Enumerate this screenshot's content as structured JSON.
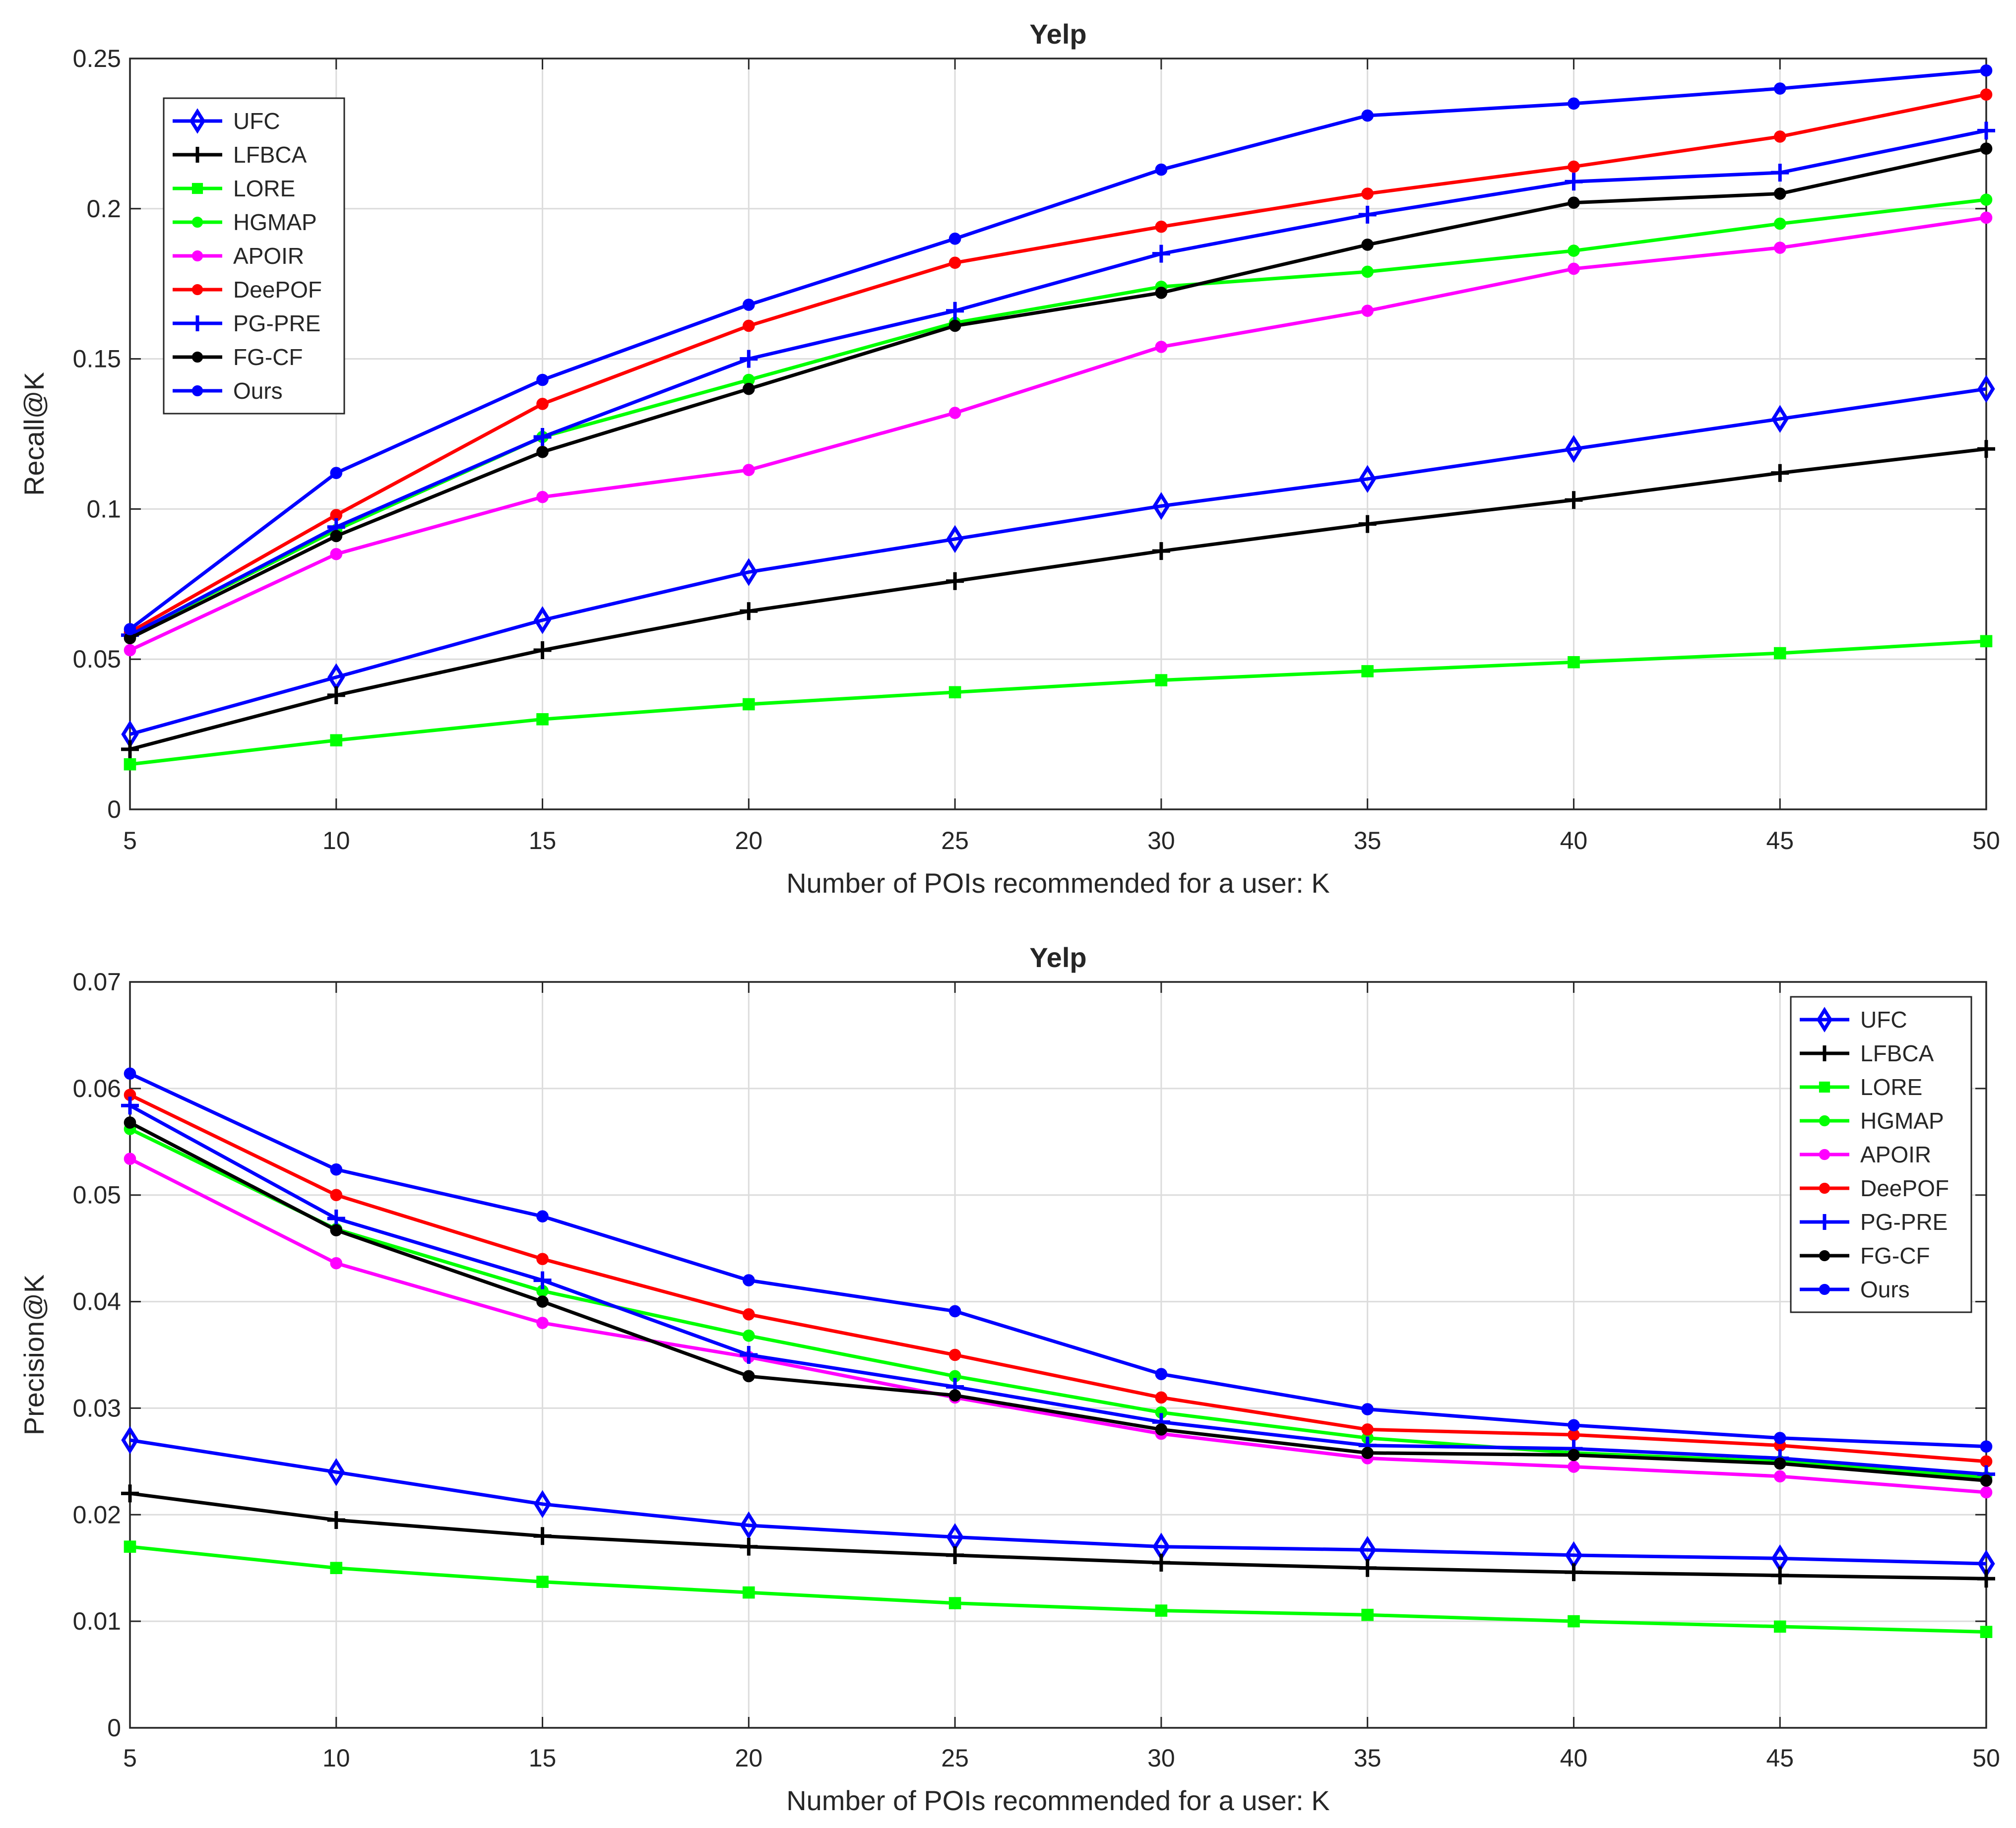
{
  "chart_data": [
    {
      "type": "line",
      "title": "Yelp",
      "xlabel": "Number of POIs recommended for a user: K",
      "ylabel": "Recall@K",
      "x": [
        5,
        10,
        15,
        20,
        25,
        30,
        35,
        40,
        45,
        50
      ],
      "xlim": [
        5,
        50
      ],
      "ylim": [
        0,
        0.25
      ],
      "xticks": [
        "5",
        "10",
        "15",
        "20",
        "25",
        "30",
        "35",
        "40",
        "45",
        "50"
      ],
      "yticks": [
        0,
        0.05,
        0.1,
        0.15,
        0.2,
        0.25
      ],
      "ytick_labels": [
        "0",
        "0.05",
        "0.1",
        "0.15",
        "0.2",
        "0.25"
      ],
      "grid": true,
      "legend_position": "top-left",
      "series": [
        {
          "name": "UFC",
          "color": "#0000ff",
          "marker": "diamond",
          "values": [
            0.025,
            0.044,
            0.063,
            0.079,
            0.09,
            0.101,
            0.11,
            0.12,
            0.13,
            0.14
          ]
        },
        {
          "name": "LFBCA",
          "color": "#000000",
          "marker": "plus",
          "values": [
            0.02,
            0.038,
            0.053,
            0.066,
            0.076,
            0.086,
            0.095,
            0.103,
            0.112,
            0.12
          ]
        },
        {
          "name": "LORE",
          "color": "#00ff00",
          "marker": "square",
          "values": [
            0.015,
            0.023,
            0.03,
            0.035,
            0.039,
            0.043,
            0.046,
            0.049,
            0.052,
            0.056
          ]
        },
        {
          "name": "HGMAP",
          "color": "#00ff00",
          "marker": "circle",
          "values": [
            0.058,
            0.093,
            0.124,
            0.143,
            0.162,
            0.174,
            0.179,
            0.186,
            0.195,
            0.203
          ]
        },
        {
          "name": "APOIR",
          "color": "#ff00ff",
          "marker": "circle",
          "values": [
            0.053,
            0.085,
            0.104,
            0.113,
            0.132,
            0.154,
            0.166,
            0.18,
            0.187,
            0.197
          ]
        },
        {
          "name": "DeePOF",
          "color": "#ff0000",
          "marker": "circle",
          "values": [
            0.059,
            0.098,
            0.135,
            0.161,
            0.182,
            0.194,
            0.205,
            0.214,
            0.224,
            0.238
          ]
        },
        {
          "name": "PG-PRE",
          "color": "#0000ff",
          "marker": "plus",
          "values": [
            0.058,
            0.094,
            0.124,
            0.15,
            0.166,
            0.185,
            0.198,
            0.209,
            0.212,
            0.226
          ]
        },
        {
          "name": "FG-CF",
          "color": "#000000",
          "marker": "circle",
          "values": [
            0.057,
            0.091,
            0.119,
            0.14,
            0.161,
            0.172,
            0.188,
            0.202,
            0.205,
            0.22
          ]
        },
        {
          "name": "Ours",
          "color": "#0000ff",
          "marker": "circle",
          "values": [
            0.06,
            0.112,
            0.143,
            0.168,
            0.19,
            0.213,
            0.231,
            0.235,
            0.24,
            0.246
          ]
        }
      ]
    },
    {
      "type": "line",
      "title": "Yelp",
      "xlabel": "Number of POIs recommended for a user: K",
      "ylabel": "Precision@K",
      "x": [
        5,
        10,
        15,
        20,
        25,
        30,
        35,
        40,
        45,
        50
      ],
      "xlim": [
        5,
        50
      ],
      "ylim": [
        0,
        0.07
      ],
      "xticks": [
        "5",
        "10",
        "15",
        "20",
        "25",
        "30",
        "35",
        "40",
        "45",
        "50"
      ],
      "yticks": [
        0,
        0.01,
        0.02,
        0.03,
        0.04,
        0.05,
        0.06,
        0.07
      ],
      "ytick_labels": [
        "0",
        "0.01",
        "0.02",
        "0.03",
        "0.04",
        "0.05",
        "0.06",
        "0.07"
      ],
      "grid": true,
      "legend_position": "top-right",
      "series": [
        {
          "name": "UFC",
          "color": "#0000ff",
          "marker": "diamond",
          "values": [
            0.027,
            0.024,
            0.021,
            0.019,
            0.0179,
            0.017,
            0.0167,
            0.0162,
            0.0159,
            0.0154
          ]
        },
        {
          "name": "LFBCA",
          "color": "#000000",
          "marker": "plus",
          "values": [
            0.022,
            0.0195,
            0.018,
            0.017,
            0.0162,
            0.0155,
            0.015,
            0.0146,
            0.0143,
            0.014
          ]
        },
        {
          "name": "LORE",
          "color": "#00ff00",
          "marker": "square",
          "values": [
            0.017,
            0.015,
            0.0137,
            0.0127,
            0.0117,
            0.011,
            0.0106,
            0.01,
            0.0095,
            0.009
          ]
        },
        {
          "name": "HGMAP",
          "color": "#00ff00",
          "marker": "circle",
          "values": [
            0.0562,
            0.0468,
            0.041,
            0.0368,
            0.033,
            0.0296,
            0.0272,
            0.0258,
            0.025,
            0.0235
          ]
        },
        {
          "name": "APOIR",
          "color": "#ff00ff",
          "marker": "circle",
          "values": [
            0.0534,
            0.0436,
            0.038,
            0.0348,
            0.031,
            0.0276,
            0.0253,
            0.0245,
            0.0236,
            0.0221
          ]
        },
        {
          "name": "DeePOF",
          "color": "#ff0000",
          "marker": "circle",
          "values": [
            0.0594,
            0.05,
            0.044,
            0.0388,
            0.035,
            0.031,
            0.028,
            0.0275,
            0.0265,
            0.025
          ]
        },
        {
          "name": "PG-PRE",
          "color": "#0000ff",
          "marker": "plus",
          "values": [
            0.0584,
            0.0478,
            0.042,
            0.035,
            0.032,
            0.0287,
            0.0265,
            0.0262,
            0.0253,
            0.0238
          ]
        },
        {
          "name": "FG-CF",
          "color": "#000000",
          "marker": "circle",
          "values": [
            0.0568,
            0.0467,
            0.04,
            0.033,
            0.0312,
            0.028,
            0.0258,
            0.0256,
            0.0248,
            0.0232
          ]
        },
        {
          "name": "Ours",
          "color": "#0000ff",
          "marker": "circle",
          "values": [
            0.0614,
            0.0524,
            0.048,
            0.042,
            0.0391,
            0.0332,
            0.0299,
            0.0284,
            0.0272,
            0.0264
          ]
        }
      ]
    }
  ]
}
